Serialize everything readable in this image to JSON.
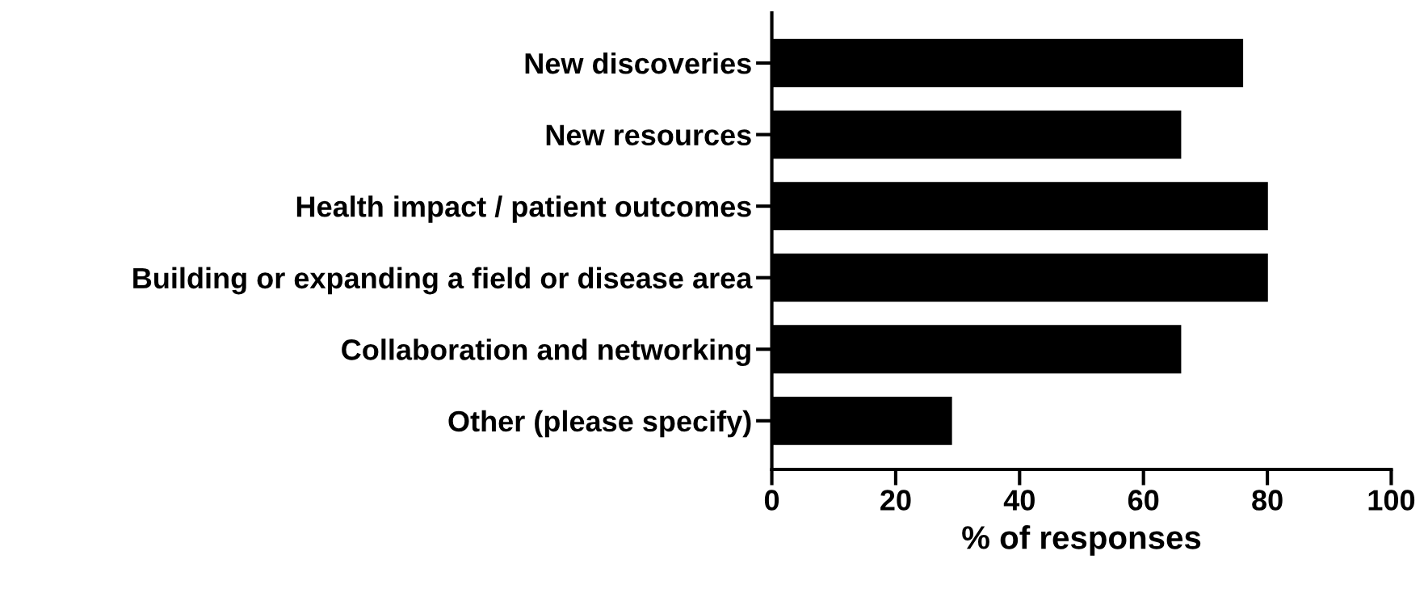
{
  "chart_data": {
    "type": "bar",
    "orientation": "horizontal",
    "xlabel": "% of responses",
    "categories": [
      "New discoveries",
      "New resources",
      "Health impact / patient outcomes",
      "Building or expanding a field or disease area",
      "Collaboration and networking",
      "Other (please specify)"
    ],
    "values": [
      76,
      66,
      80,
      80,
      66,
      29
    ],
    "color": "#000000",
    "xlim": [
      0,
      100
    ],
    "xticks": [
      0,
      20,
      40,
      60,
      80,
      100
    ],
    "grid": false
  }
}
